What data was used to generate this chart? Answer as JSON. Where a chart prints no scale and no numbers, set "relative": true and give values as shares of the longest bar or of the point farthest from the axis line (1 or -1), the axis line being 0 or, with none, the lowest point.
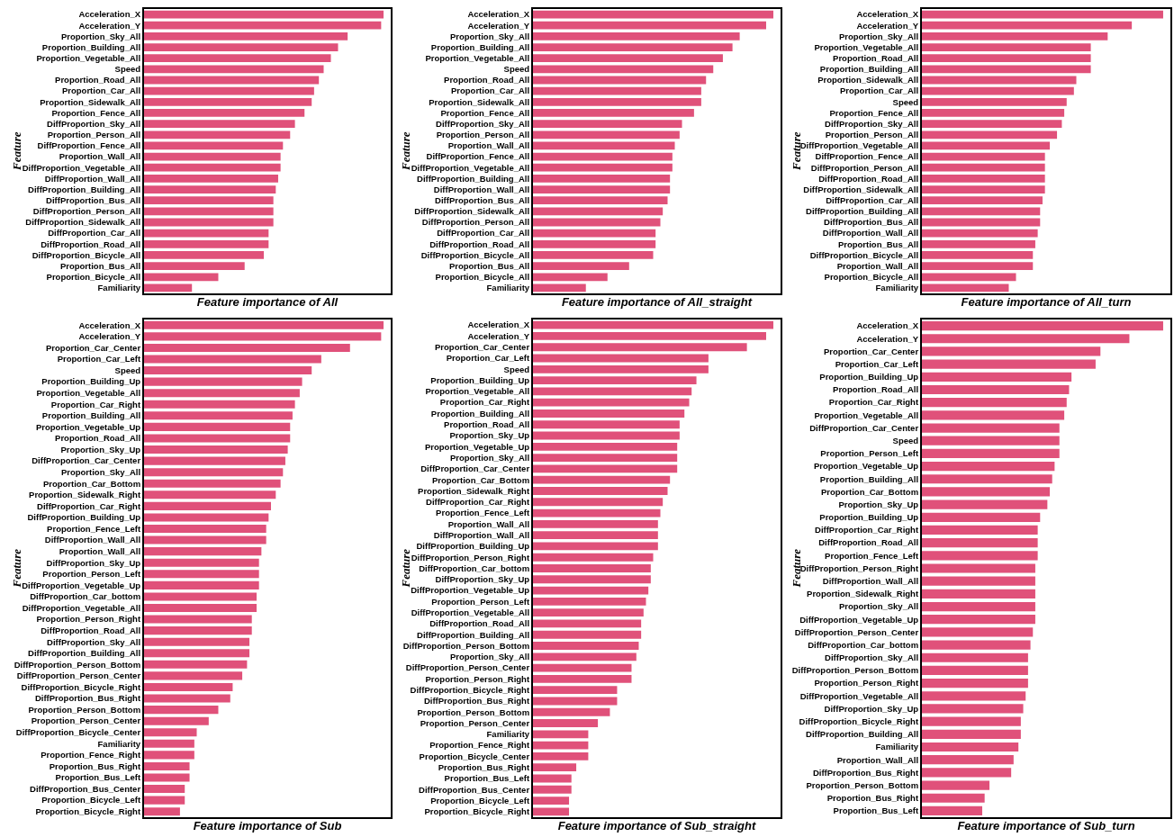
{
  "chart_data": [
    {
      "type": "bar",
      "orientation": "horizontal",
      "relative": true,
      "color": "#e0517a",
      "title": "Feature importance of All",
      "ylabel": "Feature",
      "categories": [
        "Acceleration_X",
        "Acceleration_Y",
        "Proportion_Sky_All",
        "Proportion_Building_All",
        "Proportion_Vegetable_All",
        "Speed",
        "Proportion_Road_All",
        "Proportion_Car_All",
        "Proportion_Sidewalk_All",
        "Proportion_Fence_All",
        "DiffProportion_Sky_All",
        "Proportion_Person_All",
        "DiffProportion_Fence_All",
        "Proportion_Wall_All",
        "DiffProportion_Vegetable_All",
        "DiffProportion_Wall_All",
        "DiffProportion_Building_All",
        "DiffProportion_Bus_All",
        "DiffProportion_Person_All",
        "DiffProportion_Sidewalk_All",
        "DiffProportion_Car_All",
        "DiffProportion_Road_All",
        "DiffProportion_Bicycle_All",
        "Proportion_Bus_All",
        "Proportion_Bicycle_All",
        "Familiarity"
      ],
      "values": [
        1,
        0.99,
        0.85,
        0.81,
        0.78,
        0.75,
        0.73,
        0.71,
        0.7,
        0.67,
        0.63,
        0.61,
        0.58,
        0.57,
        0.57,
        0.56,
        0.55,
        0.54,
        0.54,
        0.54,
        0.52,
        0.52,
        0.5,
        0.42,
        0.31,
        0.2
      ]
    },
    {
      "type": "bar",
      "orientation": "horizontal",
      "relative": true,
      "color": "#e0517a",
      "title": "Feature importance of All_straight",
      "ylabel": "Feature",
      "categories": [
        "Acceleration_X",
        "Acceleration_Y",
        "Proportion_Sky_All",
        "Proportion_Building_All",
        "Proportion_Vegetable_All",
        "Speed",
        "Proportion_Road_All",
        "Proportion_Car_All",
        "Proportion_Sidewalk_All",
        "Proportion_Fence_All",
        "DiffProportion_Sky_All",
        "Proportion_Person_All",
        "Proportion_Wall_All",
        "DiffProportion_Fence_All",
        "DiffProportion_Vegetable_All",
        "DiffProportion_Building_All",
        "DiffProportion_Wall_All",
        "DiffProportion_Bus_All",
        "DiffProportion_Sidewalk_All",
        "DiffProportion_Person_All",
        "DiffProportion_Car_All",
        "DiffProportion_Road_All",
        "DiffProportion_Bicycle_All",
        "Proportion_Bus_All",
        "Proportion_Bicycle_All",
        "Familiarity"
      ],
      "values": [
        1,
        0.97,
        0.86,
        0.83,
        0.79,
        0.75,
        0.72,
        0.7,
        0.7,
        0.67,
        0.62,
        0.61,
        0.59,
        0.58,
        0.58,
        0.57,
        0.57,
        0.56,
        0.54,
        0.53,
        0.51,
        0.51,
        0.5,
        0.4,
        0.31,
        0.22
      ]
    },
    {
      "type": "bar",
      "orientation": "horizontal",
      "relative": true,
      "color": "#e0517a",
      "title": "Feature importance of All_turn",
      "ylabel": "Feature",
      "categories": [
        "Acceleration_X",
        "Acceleration_Y",
        "Proportion_Sky_All",
        "Proportion_Vegetable_All",
        "Proportion_Road_All",
        "Proportion_Building_All",
        "Proportion_Sidewalk_All",
        "Proportion_Car_All",
        "Speed",
        "Proportion_Fence_All",
        "DiffProportion_Sky_All",
        "Proportion_Person_All",
        "DiffProportion_Vegetable_All",
        "DiffProportion_Fence_All",
        "DiffProportion_Person_All",
        "DiffProportion_Road_All",
        "DiffProportion_Sidewalk_All",
        "DiffProportion_Car_All",
        "DiffProportion_Building_All",
        "DiffProportion_Bus_All",
        "DiffProportion_Wall_All",
        "Proportion_Bus_All",
        "DiffProportion_Bicycle_All",
        "Proportion_Wall_All",
        "Proportion_Bicycle_All",
        "Familiarity"
      ],
      "values": [
        1,
        0.87,
        0.77,
        0.7,
        0.7,
        0.7,
        0.64,
        0.63,
        0.6,
        0.59,
        0.58,
        0.56,
        0.53,
        0.51,
        0.51,
        0.51,
        0.51,
        0.5,
        0.49,
        0.49,
        0.48,
        0.47,
        0.46,
        0.46,
        0.39,
        0.36
      ]
    },
    {
      "type": "bar",
      "orientation": "horizontal",
      "relative": true,
      "color": "#e0517a",
      "title": "Feature importance of Sub",
      "ylabel": "Feature",
      "categories": [
        "Acceleration_X",
        "Acceleration_Y",
        "Proportion_Car_Center",
        "Proportion_Car_Left",
        "Speed",
        "Proportion_Building_Up",
        "Proportion_Vegetable_All",
        "Proportion_Car_Right",
        "Proportion_Building_All",
        "Proportion_Vegetable_Up",
        "Proportion_Road_All",
        "Proportion_Sky_Up",
        "DiffProportion_Car_Center",
        "Proportion_Sky_All",
        "Proportion_Car_Bottom",
        "Proportion_Sidewalk_Right",
        "DiffProportion_Car_Right",
        "DiffProportion_Building_Up",
        "Proportion_Fence_Left",
        "DiffProportion_Wall_All",
        "Proportion_Wall_All",
        "DiffProportion_Sky_Up",
        "Proportion_Person_Left",
        "DiffProportion_Vegetable_Up",
        "DiffProportion_Car_bottom",
        "DiffProportion_Vegetable_All",
        "Proportion_Person_Right",
        "DiffProportion_Road_All",
        "DiffProportion_Sky_All",
        "DiffProportion_Building_All",
        "DiffProportion_Person_Bottom",
        "DiffProportion_Person_Center",
        "DiffProportion_Bicycle_Right",
        "DiffProportion_Bus_Right",
        "Proportion_Person_Bottom",
        "Proportion_Person_Center",
        "DiffProportion_Bicycle_Center",
        "Familiarity",
        "Proportion_Fence_Right",
        "Proportion_Bus_Right",
        "Proportion_Bus_Left",
        "DiffProportion_Bus_Center",
        "Proportion_Bicycle_Left",
        "Proportion_Bicycle_Right"
      ],
      "values": [
        1,
        0.99,
        0.86,
        0.74,
        0.7,
        0.66,
        0.65,
        0.63,
        0.62,
        0.61,
        0.61,
        0.6,
        0.59,
        0.58,
        0.57,
        0.55,
        0.53,
        0.52,
        0.51,
        0.51,
        0.49,
        0.48,
        0.48,
        0.48,
        0.47,
        0.47,
        0.45,
        0.45,
        0.44,
        0.44,
        0.43,
        0.41,
        0.37,
        0.36,
        0.31,
        0.27,
        0.22,
        0.21,
        0.21,
        0.19,
        0.19,
        0.17,
        0.17,
        0.15
      ]
    },
    {
      "type": "bar",
      "orientation": "horizontal",
      "relative": true,
      "color": "#e0517a",
      "title": "Feature importance of Sub_straight",
      "ylabel": "Feature",
      "categories": [
        "Acceleration_X",
        "Acceleration_Y",
        "Proportion_Car_Center",
        "Proportion_Car_Left",
        "Speed",
        "Proportion_Building_Up",
        "Proportion_Vegetable_All",
        "Proportion_Car_Right",
        "Proportion_Building_All",
        "Proportion_Road_All",
        "Proportion_Sky_Up",
        "Proportion_Vegetable_Up",
        "Proportion_Sky_All",
        "DiffProportion_Car_Center",
        "Proportion_Car_Bottom",
        "Proportion_Sidewalk_Right",
        "DiffProportion_Car_Right",
        "Proportion_Fence_Left",
        "Proportion_Wall_All",
        "DiffProportion_Wall_All",
        "DiffProportion_Building_Up",
        "DiffProportion_Person_Right",
        "DiffProportion_Car_bottom",
        "DiffProportion_Sky_Up",
        "DiffProportion_Vegetable_Up",
        "Proportion_Person_Left",
        "DiffProportion_Vegetable_All",
        "DiffProportion_Road_All",
        "DiffProportion_Building_All",
        "DiffProportion_Person_Bottom",
        "Proportion_Sky_All",
        "DiffProportion_Person_Center",
        "Proportion_Person_Right",
        "DiffProportion_Bicycle_Right",
        "DiffProportion_Bus_Right",
        "Proportion_Person_Bottom",
        "Proportion_Person_Center",
        "Familiarity",
        "Proportion_Fence_Right",
        "Proportion_Bicycle_Center",
        "Proportion_Bus_Right",
        "Proportion_Bus_Left",
        "DiffProportion_Bus_Center",
        "Proportion_Bicycle_Left",
        "Proportion_Bicycle_Right"
      ],
      "values": [
        1,
        0.97,
        0.89,
        0.73,
        0.73,
        0.68,
        0.66,
        0.65,
        0.63,
        0.61,
        0.61,
        0.6,
        0.6,
        0.6,
        0.57,
        0.56,
        0.54,
        0.53,
        0.52,
        0.52,
        0.52,
        0.5,
        0.49,
        0.49,
        0.48,
        0.47,
        0.46,
        0.45,
        0.45,
        0.44,
        0.43,
        0.41,
        0.41,
        0.35,
        0.35,
        0.32,
        0.27,
        0.23,
        0.23,
        0.23,
        0.18,
        0.16,
        0.16,
        0.15,
        0.15
      ]
    },
    {
      "type": "bar",
      "orientation": "horizontal",
      "relative": true,
      "color": "#e0517a",
      "title": "Feature importance of Sub_turn",
      "ylabel": "Feature",
      "categories": [
        "Acceleration_X",
        "Acceleration_Y",
        "Proportion_Car_Center",
        "Proportion_Car_Left",
        "Proportion_Building_Up",
        "Proportion_Road_All",
        "Proportion_Car_Right",
        "Proportion_Vegetable_All",
        "DiffProportion_Car_Center",
        "Speed",
        "Proportion_Person_Left",
        "Proportion_Vegetable_Up",
        "Proportion_Building_All",
        "Proportion_Car_Bottom",
        "Proportion_Sky_Up",
        "Proportion_Building_Up",
        "DiffProportion_Car_Right",
        "DiffProportion_Road_All",
        "Proportion_Fence_Left",
        "DiffProportion_Person_Right",
        "DiffProportion_Wall_All",
        "Proportion_Sidewalk_Right",
        "Proportion_Sky_All",
        "DiffProportion_Vegetable_Up",
        "DiffProportion_Person_Center",
        "DiffProportion_Car_bottom",
        "DiffProportion_Sky_All",
        "DiffProportion_Person_Bottom",
        "Proportion_Person_Right",
        "DiffProportion_Vegetable_All",
        "DiffProportion_Sky_Up",
        "DiffProportion_Bicycle_Right",
        "DiffProportion_Building_All",
        "Familiarity",
        "Proportion_Wall_All",
        "DiffProportion_Bus_Right",
        "Proportion_Person_Bottom",
        "Proportion_Bus_Right",
        "Proportion_Bus_Left"
      ],
      "values": [
        1,
        0.86,
        0.74,
        0.72,
        0.62,
        0.61,
        0.6,
        0.59,
        0.57,
        0.57,
        0.57,
        0.55,
        0.54,
        0.53,
        0.52,
        0.49,
        0.48,
        0.48,
        0.48,
        0.47,
        0.47,
        0.47,
        0.47,
        0.47,
        0.46,
        0.45,
        0.44,
        0.44,
        0.44,
        0.43,
        0.42,
        0.41,
        0.41,
        0.4,
        0.38,
        0.37,
        0.28,
        0.26,
        0.25
      ]
    }
  ]
}
